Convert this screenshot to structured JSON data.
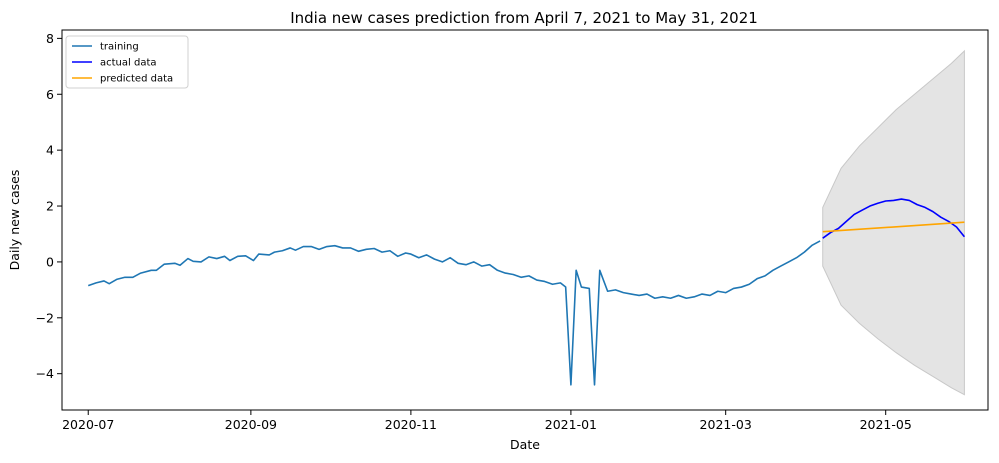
{
  "chart_data": {
    "type": "line",
    "title": "India new cases prediction from April 7, 2021 to May 31, 2021",
    "xlabel": "Date",
    "ylabel": "Daily new cases",
    "xlim": [
      "2020-06-21",
      "2021-06-09"
    ],
    "ylim": [
      -5.3,
      8.3
    ],
    "x_ticks": [
      "2020-07-01",
      "2020-09-01",
      "2020-11-01",
      "2021-01-01",
      "2021-03-01",
      "2021-05-01"
    ],
    "x_tick_labels": [
      "2020-07",
      "2020-09",
      "2020-11",
      "2021-01",
      "2021-03",
      "2021-05"
    ],
    "y_ticks": [
      -4,
      -2,
      0,
      2,
      4,
      6,
      8
    ],
    "y_tick_labels": [
      "−4",
      "−2",
      "0",
      "2",
      "4",
      "6",
      "8"
    ],
    "grid": false,
    "legend_position": "top-left",
    "series": [
      {
        "name": "training",
        "color": "#1f77b4",
        "points": [
          [
            "2020-07-01",
            -0.85
          ],
          [
            "2020-07-04",
            -0.75
          ],
          [
            "2020-07-07",
            -0.68
          ],
          [
            "2020-07-09",
            -0.78
          ],
          [
            "2020-07-12",
            -0.62
          ],
          [
            "2020-07-15",
            -0.55
          ],
          [
            "2020-07-18",
            -0.55
          ],
          [
            "2020-07-21",
            -0.4
          ],
          [
            "2020-07-25",
            -0.3
          ],
          [
            "2020-07-27",
            -0.3
          ],
          [
            "2020-07-30",
            -0.08
          ],
          [
            "2020-08-03",
            -0.05
          ],
          [
            "2020-08-05",
            -0.12
          ],
          [
            "2020-08-08",
            0.12
          ],
          [
            "2020-08-10",
            0.02
          ],
          [
            "2020-08-13",
            0.0
          ],
          [
            "2020-08-16",
            0.18
          ],
          [
            "2020-08-19",
            0.12
          ],
          [
            "2020-08-22",
            0.2
          ],
          [
            "2020-08-24",
            0.05
          ],
          [
            "2020-08-27",
            0.2
          ],
          [
            "2020-08-30",
            0.22
          ],
          [
            "2020-09-02",
            0.05
          ],
          [
            "2020-09-04",
            0.28
          ],
          [
            "2020-09-08",
            0.25
          ],
          [
            "2020-09-10",
            0.35
          ],
          [
            "2020-09-13",
            0.4
          ],
          [
            "2020-09-16",
            0.5
          ],
          [
            "2020-09-18",
            0.42
          ],
          [
            "2020-09-21",
            0.55
          ],
          [
            "2020-09-24",
            0.55
          ],
          [
            "2020-09-27",
            0.45
          ],
          [
            "2020-09-30",
            0.55
          ],
          [
            "2020-10-03",
            0.58
          ],
          [
            "2020-10-06",
            0.5
          ],
          [
            "2020-10-09",
            0.5
          ],
          [
            "2020-10-12",
            0.38
          ],
          [
            "2020-10-15",
            0.45
          ],
          [
            "2020-10-18",
            0.48
          ],
          [
            "2020-10-21",
            0.35
          ],
          [
            "2020-10-24",
            0.4
          ],
          [
            "2020-10-27",
            0.2
          ],
          [
            "2020-10-30",
            0.32
          ],
          [
            "2020-11-01",
            0.28
          ],
          [
            "2020-11-04",
            0.15
          ],
          [
            "2020-11-07",
            0.25
          ],
          [
            "2020-11-10",
            0.1
          ],
          [
            "2020-11-13",
            0.0
          ],
          [
            "2020-11-16",
            0.15
          ],
          [
            "2020-11-19",
            -0.05
          ],
          [
            "2020-11-22",
            -0.1
          ],
          [
            "2020-11-25",
            0.0
          ],
          [
            "2020-11-28",
            -0.15
          ],
          [
            "2020-12-01",
            -0.1
          ],
          [
            "2020-12-04",
            -0.3
          ],
          [
            "2020-12-07",
            -0.4
          ],
          [
            "2020-12-10",
            -0.45
          ],
          [
            "2020-12-13",
            -0.55
          ],
          [
            "2020-12-16",
            -0.5
          ],
          [
            "2020-12-19",
            -0.65
          ],
          [
            "2020-12-22",
            -0.7
          ],
          [
            "2020-12-25",
            -0.8
          ],
          [
            "2020-12-28",
            -0.75
          ],
          [
            "2020-12-30",
            -0.9
          ],
          [
            "2021-01-01",
            -4.4
          ],
          [
            "2021-01-03",
            -0.3
          ],
          [
            "2021-01-05",
            -0.9
          ],
          [
            "2021-01-08",
            -0.95
          ],
          [
            "2021-01-10",
            -4.4
          ],
          [
            "2021-01-12",
            -0.3
          ],
          [
            "2021-01-15",
            -1.05
          ],
          [
            "2021-01-18",
            -1.0
          ],
          [
            "2021-01-21",
            -1.1
          ],
          [
            "2021-01-24",
            -1.15
          ],
          [
            "2021-01-27",
            -1.2
          ],
          [
            "2021-01-30",
            -1.15
          ],
          [
            "2021-02-02",
            -1.3
          ],
          [
            "2021-02-05",
            -1.25
          ],
          [
            "2021-02-08",
            -1.3
          ],
          [
            "2021-02-11",
            -1.2
          ],
          [
            "2021-02-14",
            -1.3
          ],
          [
            "2021-02-17",
            -1.25
          ],
          [
            "2021-02-20",
            -1.15
          ],
          [
            "2021-02-23",
            -1.2
          ],
          [
            "2021-02-26",
            -1.05
          ],
          [
            "2021-03-01",
            -1.1
          ],
          [
            "2021-03-04",
            -0.95
          ],
          [
            "2021-03-07",
            -0.9
          ],
          [
            "2021-03-10",
            -0.8
          ],
          [
            "2021-03-13",
            -0.6
          ],
          [
            "2021-03-16",
            -0.5
          ],
          [
            "2021-03-19",
            -0.3
          ],
          [
            "2021-03-22",
            -0.15
          ],
          [
            "2021-03-25",
            0.0
          ],
          [
            "2021-03-28",
            0.15
          ],
          [
            "2021-03-31",
            0.35
          ],
          [
            "2021-04-03",
            0.6
          ],
          [
            "2021-04-06",
            0.75
          ]
        ]
      },
      {
        "name": "actual data",
        "color": "#0000ff",
        "points": [
          [
            "2021-04-07",
            0.85
          ],
          [
            "2021-04-10",
            1.05
          ],
          [
            "2021-04-13",
            1.2
          ],
          [
            "2021-04-16",
            1.45
          ],
          [
            "2021-04-19",
            1.7
          ],
          [
            "2021-04-22",
            1.85
          ],
          [
            "2021-04-25",
            2.0
          ],
          [
            "2021-04-28",
            2.1
          ],
          [
            "2021-05-01",
            2.18
          ],
          [
            "2021-05-04",
            2.2
          ],
          [
            "2021-05-07",
            2.25
          ],
          [
            "2021-05-10",
            2.2
          ],
          [
            "2021-05-13",
            2.05
          ],
          [
            "2021-05-16",
            1.95
          ],
          [
            "2021-05-19",
            1.8
          ],
          [
            "2021-05-22",
            1.6
          ],
          [
            "2021-05-25",
            1.45
          ],
          [
            "2021-05-28",
            1.25
          ],
          [
            "2021-05-31",
            0.9
          ]
        ]
      },
      {
        "name": "predicted data",
        "color": "#ffa500",
        "points": [
          [
            "2021-04-07",
            1.08
          ],
          [
            "2021-05-31",
            1.42
          ]
        ]
      }
    ],
    "confidence_band": {
      "color": "#d3d3d3",
      "points": [
        [
          "2021-04-07",
          -0.15,
          1.95
        ],
        [
          "2021-04-14",
          -1.55,
          3.35
        ],
        [
          "2021-04-21",
          -2.2,
          4.15
        ],
        [
          "2021-04-28",
          -2.75,
          4.8
        ],
        [
          "2021-05-05",
          -3.25,
          5.45
        ],
        [
          "2021-05-12",
          -3.7,
          6.0
        ],
        [
          "2021-05-19",
          -4.1,
          6.55
        ],
        [
          "2021-05-26",
          -4.5,
          7.1
        ],
        [
          "2021-05-31",
          -4.75,
          7.55
        ]
      ]
    }
  }
}
